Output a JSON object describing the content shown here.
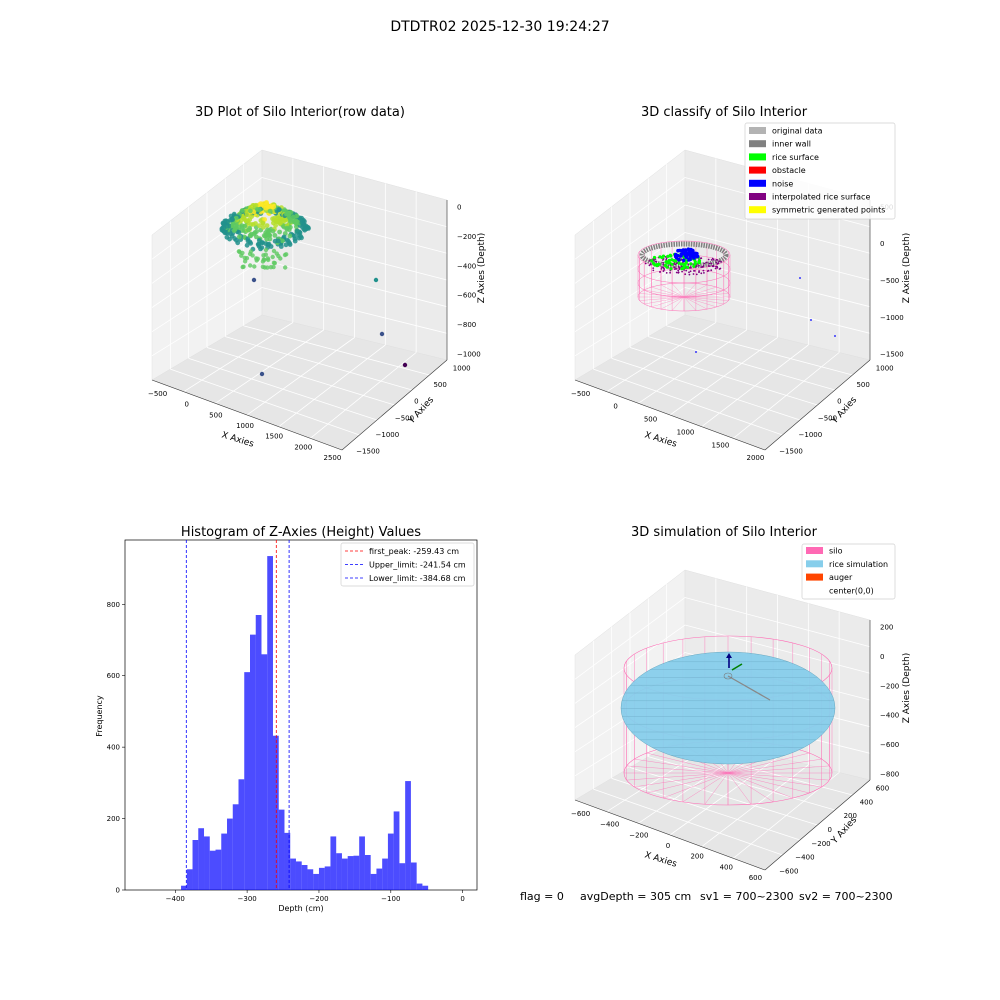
{
  "figure": {
    "suptitle": "DTDTR02 2025-12-30 19:24:27",
    "status": {
      "flag": "flag = 0",
      "avg_depth": "avgDepth = 305 cm",
      "sv1": "sv1 = 700~2300",
      "sv2": "sv2 = 700~2300"
    }
  },
  "chart_data": [
    {
      "id": "raw3d",
      "type": "scatter",
      "title": "3D Plot of Silo Interior(row data)",
      "xlabel": "X Axies",
      "ylabel": "Y Axies",
      "zlabel": "Z Axies (Depth)",
      "xticks": [
        "−500",
        "0",
        "500",
        "1000",
        "1500",
        "2000",
        "2500"
      ],
      "yticks": [
        "1000",
        "500",
        "0",
        "−500",
        "−1000",
        "−1500"
      ],
      "zticks": [
        "0",
        "−200",
        "−400",
        "−600",
        "−800",
        "−1000"
      ],
      "grid": true,
      "colormap": "viridis"
    },
    {
      "id": "classify3d",
      "type": "scatter",
      "title": "3D classify of Silo Interior",
      "xlabel": "X Axies",
      "ylabel": "Y Axies",
      "zlabel": "Z Axies (Depth)",
      "xticks": [
        "−500",
        "0",
        "500",
        "1000",
        "1500",
        "2000"
      ],
      "yticks": [
        "1000",
        "500",
        "0",
        "−500",
        "−1000",
        "−1500"
      ],
      "zticks": [
        "500",
        "0",
        "−500",
        "−1000",
        "−1500"
      ],
      "grid": true,
      "legend_position": "top-right",
      "legend": [
        {
          "label": "original data",
          "color": "#b3b3b3"
        },
        {
          "label": "inner wall",
          "color": "#808080"
        },
        {
          "label": "rice surface",
          "color": "#00ff00"
        },
        {
          "label": "obstacle",
          "color": "#ff0000"
        },
        {
          "label": "noise",
          "color": "#0000ff"
        },
        {
          "label": "interpolated rice surface",
          "color": "#800080"
        },
        {
          "label": "symmetric generated points",
          "color": "#ffff00"
        }
      ]
    },
    {
      "id": "hist",
      "type": "bar",
      "title": "Histogram of Z-Axies (Height) Values",
      "xlabel": "Depth (cm)",
      "ylabel": "Frequency",
      "xlim": [
        -470,
        20
      ],
      "ylim": [
        0,
        980
      ],
      "xticks": [
        -400,
        -300,
        -200,
        -100,
        0
      ],
      "yticks": [
        0,
        200,
        400,
        600,
        800
      ],
      "bar_color": "#0000ff",
      "bins": [
        [
          -392,
          -384,
          12
        ],
        [
          -384,
          -376,
          58
        ],
        [
          -376,
          -368,
          140
        ],
        [
          -368,
          -360,
          173
        ],
        [
          -360,
          -352,
          150
        ],
        [
          -352,
          -344,
          110
        ],
        [
          -344,
          -336,
          113
        ],
        [
          -336,
          -328,
          158
        ],
        [
          -328,
          -320,
          200
        ],
        [
          -320,
          -312,
          240
        ],
        [
          -312,
          -304,
          310
        ],
        [
          -304,
          -296,
          610
        ],
        [
          -296,
          -288,
          715
        ],
        [
          -288,
          -280,
          770
        ],
        [
          -280,
          -272,
          660
        ],
        [
          -272,
          -264,
          935
        ],
        [
          -264,
          -256,
          432
        ],
        [
          -256,
          -248,
          225
        ],
        [
          -248,
          -240,
          160
        ],
        [
          -240,
          -232,
          88
        ],
        [
          -232,
          -224,
          80
        ],
        [
          -224,
          -216,
          70
        ],
        [
          -216,
          -208,
          58
        ],
        [
          -208,
          -200,
          45
        ],
        [
          -200,
          -192,
          62
        ],
        [
          -192,
          -184,
          66
        ],
        [
          -184,
          -176,
          150
        ],
        [
          -176,
          -168,
          103
        ],
        [
          -168,
          -160,
          88
        ],
        [
          -160,
          -152,
          95
        ],
        [
          -152,
          -144,
          96
        ],
        [
          -144,
          -136,
          150
        ],
        [
          -136,
          -128,
          98
        ],
        [
          -128,
          -120,
          45
        ],
        [
          -120,
          -112,
          60
        ],
        [
          -112,
          -104,
          88
        ],
        [
          -104,
          -96,
          158
        ],
        [
          -96,
          -88,
          220
        ],
        [
          -88,
          -80,
          75
        ],
        [
          -80,
          -72,
          305
        ],
        [
          -72,
          -64,
          77
        ],
        [
          -64,
          -56,
          18
        ],
        [
          -56,
          -48,
          12
        ]
      ],
      "lines": [
        {
          "label": "first_peak: -259.43 cm",
          "value": -259.43,
          "color": "#ff0000"
        },
        {
          "label": "Upper_limit: -241.54 cm",
          "value": -241.54,
          "color": "#0000ff"
        },
        {
          "label": "Lower_limit: -384.68 cm",
          "value": -384.68,
          "color": "#0000ff"
        }
      ],
      "legend_position": "top-right"
    },
    {
      "id": "sim3d",
      "type": "scatter",
      "title": "3D simulation of Silo Interior",
      "xlabel": "X Axies",
      "ylabel": "Y Axies",
      "zlabel": "Z Axies (Depth)",
      "xticks": [
        "−600",
        "−400",
        "−200",
        "0",
        "200",
        "400",
        "600"
      ],
      "yticks": [
        "600",
        "400",
        "200",
        "0",
        "−200",
        "−400",
        "−600"
      ],
      "zticks": [
        "200",
        "0",
        "−200",
        "−400",
        "−600",
        "−800"
      ],
      "grid": true,
      "legend_position": "top-right",
      "legend": [
        {
          "label": "silo",
          "color": "#ff69b4"
        },
        {
          "label": "rice simulation",
          "color": "#87ceeb"
        },
        {
          "label": "auger",
          "color": "#ff4500"
        },
        {
          "label": "center(0,0)",
          "color": "#ffffff"
        }
      ]
    }
  ]
}
